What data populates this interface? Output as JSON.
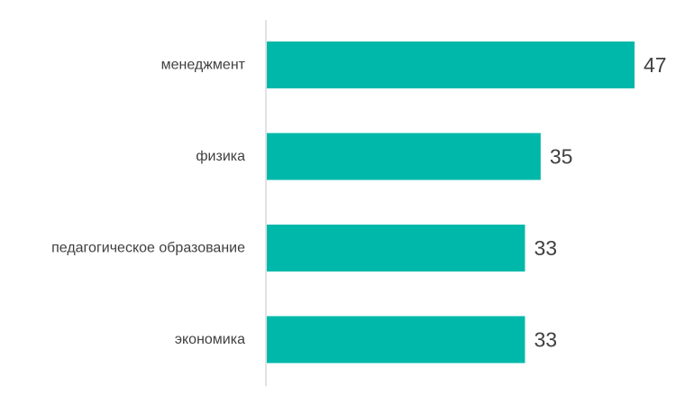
{
  "chart_data": {
    "type": "bar",
    "orientation": "horizontal",
    "categories": [
      "менеджмент",
      "физика",
      "педагогическое образование",
      "экономика"
    ],
    "values": [
      47,
      35,
      33,
      33
    ],
    "value_labels": [
      "47",
      "35",
      "33",
      "33"
    ],
    "bar_color": "#00B8AA",
    "axis_color": "#D9D9D9",
    "text_color": "#404040",
    "xlim": [
      0,
      47
    ],
    "grid": false,
    "legend": "none"
  }
}
